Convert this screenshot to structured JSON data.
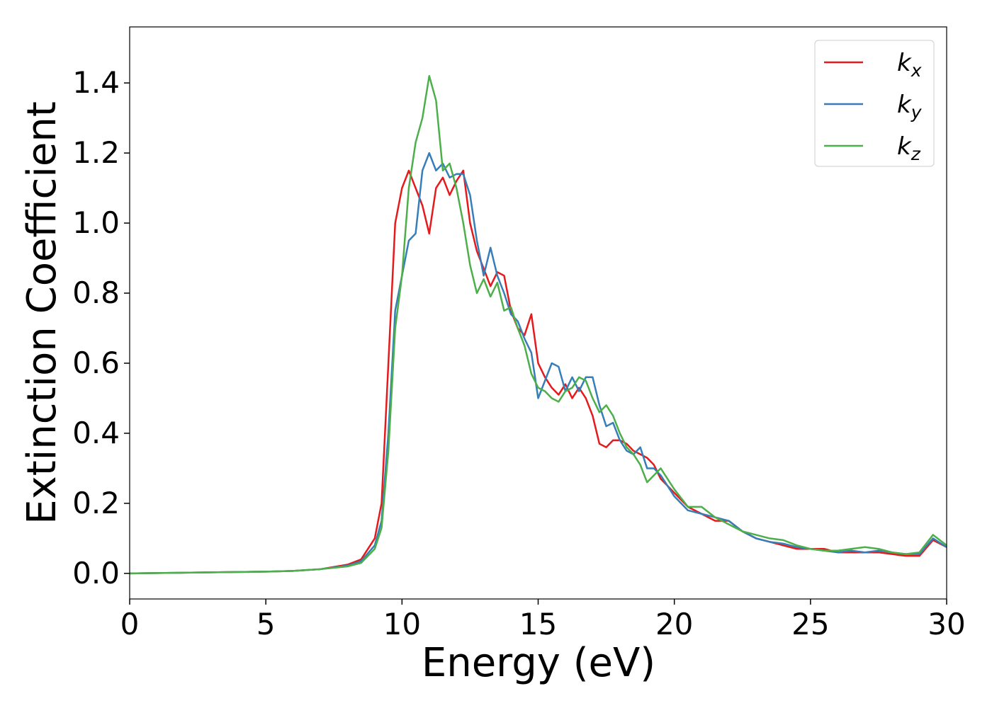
{
  "chart_data": {
    "type": "line",
    "xlabel": "Energy (eV)",
    "ylabel": "Extinction Coefficient",
    "x": [
      0,
      1,
      2,
      3,
      4,
      5,
      6,
      7,
      8,
      8.5,
      9,
      9.25,
      9.5,
      9.75,
      10,
      10.25,
      10.5,
      10.75,
      11,
      11.25,
      11.5,
      11.75,
      12,
      12.25,
      12.5,
      12.75,
      13,
      13.25,
      13.5,
      13.75,
      14,
      14.25,
      14.5,
      14.75,
      15,
      15.25,
      15.5,
      15.75,
      16,
      16.25,
      16.5,
      16.75,
      17,
      17.25,
      17.5,
      17.75,
      18,
      18.25,
      18.5,
      18.75,
      19,
      19.25,
      19.5,
      19.75,
      20,
      20.5,
      21,
      21.5,
      22,
      22.5,
      23,
      23.5,
      24,
      24.5,
      25,
      25.5,
      26,
      26.5,
      27,
      27.5,
      28,
      28.5,
      29,
      29.5,
      30
    ],
    "series": [
      {
        "name": "kx",
        "color": "#e41a1c",
        "values": [
          0,
          0.001,
          0.002,
          0.003,
          0.004,
          0.005,
          0.007,
          0.012,
          0.025,
          0.04,
          0.1,
          0.2,
          0.6,
          1.0,
          1.1,
          1.15,
          1.1,
          1.05,
          0.97,
          1.1,
          1.13,
          1.08,
          1.12,
          1.15,
          1.0,
          0.92,
          0.87,
          0.82,
          0.86,
          0.85,
          0.75,
          0.7,
          0.68,
          0.74,
          0.6,
          0.56,
          0.53,
          0.51,
          0.54,
          0.5,
          0.53,
          0.5,
          0.45,
          0.37,
          0.36,
          0.38,
          0.38,
          0.37,
          0.35,
          0.34,
          0.33,
          0.31,
          0.27,
          0.25,
          0.23,
          0.19,
          0.17,
          0.15,
          0.15,
          0.12,
          0.1,
          0.09,
          0.08,
          0.07,
          0.07,
          0.07,
          0.06,
          0.06,
          0.06,
          0.06,
          0.055,
          0.05,
          0.05,
          0.095,
          0.075
        ]
      },
      {
        "name": "ky",
        "color": "#377eb8",
        "values": [
          0,
          0.001,
          0.002,
          0.003,
          0.004,
          0.005,
          0.007,
          0.012,
          0.022,
          0.035,
          0.08,
          0.15,
          0.4,
          0.75,
          0.85,
          0.95,
          0.97,
          1.15,
          1.2,
          1.15,
          1.17,
          1.13,
          1.14,
          1.14,
          1.08,
          0.95,
          0.85,
          0.93,
          0.85,
          0.8,
          0.74,
          0.72,
          0.67,
          0.63,
          0.5,
          0.55,
          0.6,
          0.59,
          0.52,
          0.56,
          0.52,
          0.56,
          0.56,
          0.48,
          0.42,
          0.43,
          0.38,
          0.35,
          0.34,
          0.36,
          0.3,
          0.3,
          0.28,
          0.25,
          0.22,
          0.18,
          0.17,
          0.16,
          0.15,
          0.12,
          0.1,
          0.09,
          0.085,
          0.075,
          0.07,
          0.065,
          0.06,
          0.065,
          0.06,
          0.065,
          0.06,
          0.055,
          0.055,
          0.1,
          0.075
        ]
      },
      {
        "name": "kz",
        "color": "#4daf4a",
        "values": [
          0,
          0.001,
          0.002,
          0.003,
          0.004,
          0.005,
          0.007,
          0.012,
          0.02,
          0.03,
          0.07,
          0.13,
          0.35,
          0.7,
          0.85,
          1.1,
          1.23,
          1.3,
          1.42,
          1.35,
          1.15,
          1.17,
          1.1,
          1.0,
          0.88,
          0.8,
          0.84,
          0.79,
          0.83,
          0.75,
          0.76,
          0.7,
          0.65,
          0.57,
          0.53,
          0.52,
          0.5,
          0.49,
          0.52,
          0.53,
          0.56,
          0.55,
          0.5,
          0.46,
          0.48,
          0.45,
          0.4,
          0.36,
          0.34,
          0.31,
          0.26,
          0.28,
          0.3,
          0.27,
          0.24,
          0.19,
          0.19,
          0.16,
          0.14,
          0.12,
          0.11,
          0.1,
          0.095,
          0.08,
          0.07,
          0.065,
          0.065,
          0.07,
          0.075,
          0.07,
          0.06,
          0.055,
          0.06,
          0.11,
          0.08
        ]
      }
    ],
    "xlim": [
      0,
      30
    ],
    "xticks": [
      0,
      5,
      10,
      15,
      20,
      25,
      30
    ],
    "ylim": [
      -0.073,
      1.56
    ],
    "yticks": [
      {
        "value": 0,
        "label": "0.0"
      },
      {
        "value": 0.2,
        "label": "0.2"
      },
      {
        "value": 0.4,
        "label": "0.4"
      },
      {
        "value": 0.6,
        "label": "0.6"
      },
      {
        "value": 0.8,
        "label": "0.8"
      },
      {
        "value": 1.0,
        "label": "1.0"
      },
      {
        "value": 1.2,
        "label": "1.2"
      },
      {
        "value": 1.4,
        "label": "1.4"
      }
    ],
    "grid": false,
    "legend": "upper right"
  }
}
